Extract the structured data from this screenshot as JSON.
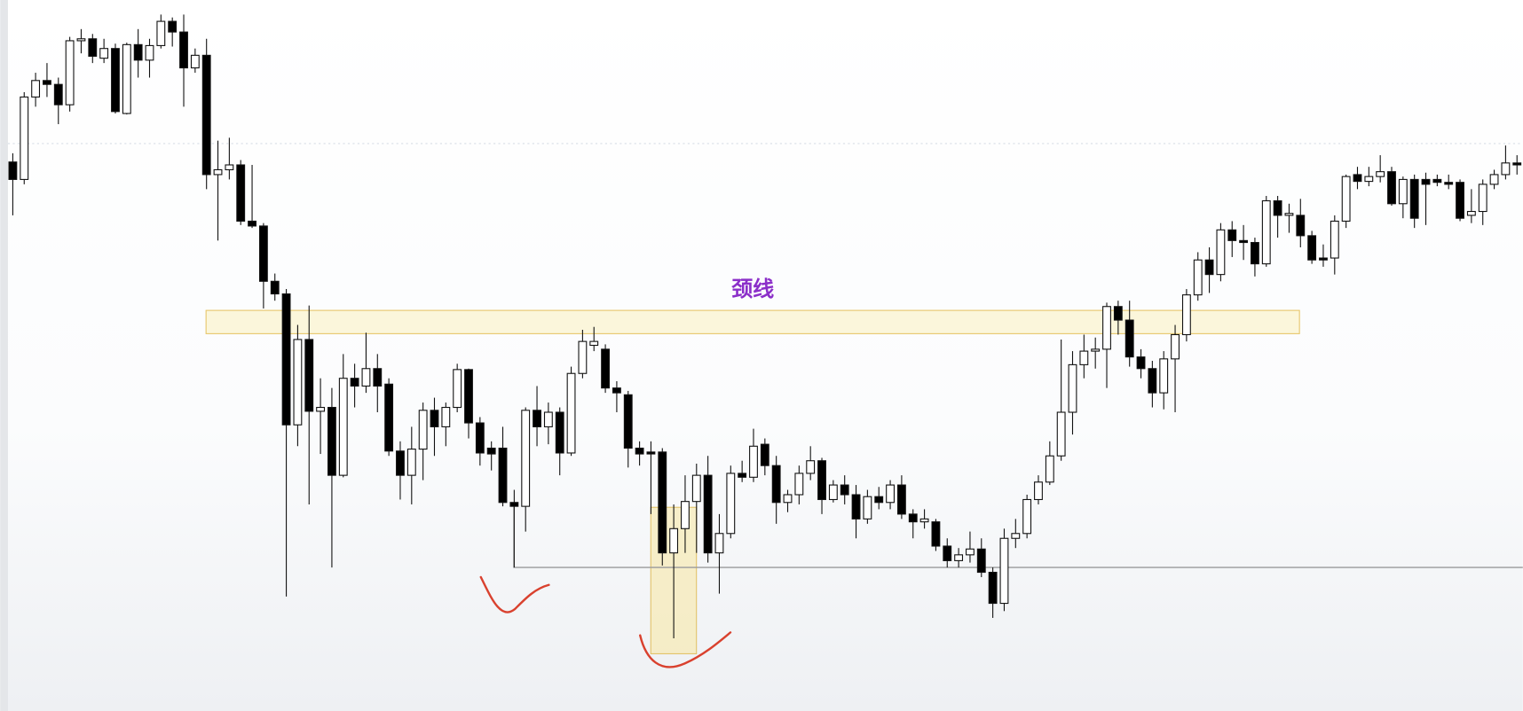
{
  "chart_data": {
    "type": "candlestick",
    "open": [
      566,
      548,
      633,
      650,
      646,
      625,
      691,
      693,
      673,
      683,
      616,
      687,
      671,
      686,
      711,
      700,
      663,
      676,
      553,
      558,
      563,
      505,
      500,
      443,
      430,
      295,
      383,
      309,
      313,
      243,
      343,
      335,
      353,
      337,
      268,
      243,
      270,
      310,
      293,
      313,
      352,
      297,
      271,
      271,
      215,
      211,
      310,
      293,
      308,
      266,
      348,
      377,
      373,
      333,
      326,
      271,
      267,
      267,
      163,
      188,
      216,
      243,
      163,
      183,
      245,
      241,
      275,
      253,
      215,
      223,
      245,
      258,
      218,
      233,
      223,
      198,
      221,
      215,
      233,
      203,
      195,
      195,
      170,
      155,
      161,
      167,
      143,
      111,
      178,
      183,
      218,
      236,
      263,
      308,
      357,
      371,
      373,
      417,
      403,
      365,
      353,
      328,
      363,
      388,
      429,
      465,
      450,
      496,
      485,
      483,
      461,
      526,
      511,
      511,
      490,
      467,
      467,
      505,
      553,
      546,
      551,
      556,
      523,
      548,
      548,
      548,
      545,
      545,
      511,
      515,
      543,
      553,
      565
    ],
    "high": [
      575,
      638,
      658,
      668,
      653,
      695,
      703,
      698,
      693,
      688,
      689,
      703,
      693,
      718,
      715,
      718,
      683,
      693,
      588,
      591,
      568,
      563,
      503,
      451,
      435,
      398,
      418,
      343,
      333,
      368,
      358,
      390,
      368,
      343,
      278,
      293,
      318,
      323,
      318,
      358,
      353,
      303,
      278,
      293,
      228,
      313,
      335,
      318,
      313,
      355,
      393,
      396,
      378,
      340,
      330,
      278,
      278,
      271,
      213,
      243,
      255,
      263,
      203,
      253,
      258,
      291,
      281,
      263,
      228,
      253,
      273,
      261,
      238,
      243,
      233,
      228,
      231,
      238,
      243,
      208,
      208,
      198,
      178,
      168,
      185,
      178,
      148,
      188,
      198,
      223,
      243,
      278,
      383,
      371,
      388,
      385,
      421,
      423,
      423,
      373,
      361,
      371,
      398,
      435,
      473,
      478,
      503,
      505,
      501,
      488,
      531,
      531,
      523,
      528,
      495,
      481,
      511,
      553,
      561,
      561,
      573,
      561,
      551,
      553,
      555,
      553,
      553,
      548,
      538,
      548,
      558,
      583,
      573
    ],
    "low": [
      511,
      543,
      623,
      633,
      605,
      618,
      678,
      668,
      668,
      616,
      615,
      653,
      653,
      683,
      685,
      623,
      658,
      538,
      485,
      548,
      501,
      498,
      415,
      423,
      118,
      273,
      213,
      265,
      148,
      241,
      313,
      328,
      308,
      263,
      218,
      213,
      238,
      263,
      273,
      308,
      281,
      253,
      248,
      211,
      148,
      185,
      273,
      275,
      243,
      263,
      343,
      371,
      328,
      308,
      251,
      253,
      203,
      150,
      75,
      163,
      163,
      153,
      121,
      178,
      236,
      236,
      243,
      193,
      205,
      213,
      238,
      203,
      215,
      213,
      178,
      193,
      208,
      208,
      198,
      178,
      188,
      165,
      148,
      148,
      153,
      138,
      96,
      103,
      168,
      178,
      213,
      233,
      258,
      285,
      343,
      353,
      333,
      388,
      355,
      343,
      313,
      311,
      308,
      381,
      423,
      431,
      443,
      468,
      465,
      448,
      458,
      488,
      493,
      478,
      461,
      458,
      450,
      498,
      538,
      541,
      545,
      521,
      508,
      498,
      501,
      541,
      538,
      505,
      503,
      501,
      538,
      548,
      553
    ],
    "close": [
      548,
      633,
      650,
      646,
      625,
      691,
      693,
      675,
      683,
      618,
      687,
      671,
      686,
      711,
      700,
      663,
      676,
      553,
      558,
      563,
      505,
      500,
      443,
      430,
      295,
      383,
      309,
      313,
      243,
      343,
      335,
      353,
      335,
      268,
      243,
      270,
      310,
      293,
      313,
      352,
      297,
      266,
      265,
      215,
      211,
      310,
      293,
      308,
      266,
      348,
      381,
      381,
      333,
      328,
      271,
      265,
      265,
      163,
      188,
      216,
      243,
      163,
      183,
      245,
      241,
      273,
      253,
      215,
      223,
      245,
      258,
      218,
      233,
      223,
      198,
      221,
      215,
      233,
      203,
      195,
      198,
      170,
      155,
      161,
      167,
      143,
      111,
      178,
      183,
      218,
      236,
      263,
      308,
      357,
      371,
      373,
      417,
      403,
      365,
      353,
      328,
      363,
      388,
      429,
      465,
      450,
      496,
      485,
      483,
      461,
      526,
      511,
      513,
      490,
      465,
      465,
      505,
      551,
      546,
      551,
      556,
      523,
      548,
      508,
      543,
      545,
      543,
      508,
      515,
      543,
      553,
      565,
      563
    ],
    "ylim": [
      0,
      733
    ],
    "up_color": "#ffffff",
    "down_color": "#000000",
    "annotations": [
      "颈线"
    ]
  }
}
